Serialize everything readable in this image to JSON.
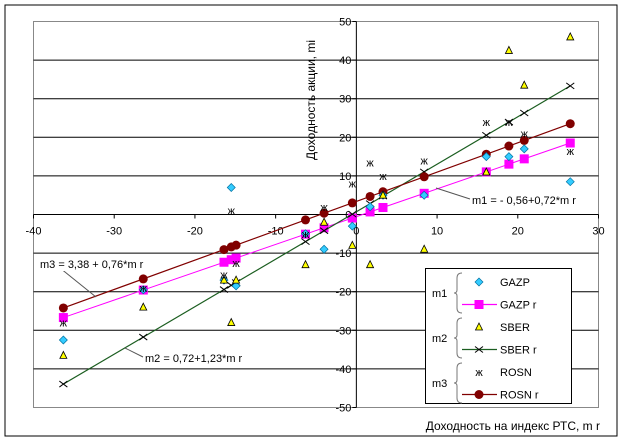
{
  "chart_data": {
    "type": "scatter",
    "xlabel": "Доходность на индекс РТС, m r",
    "ylabel": "Доходность акции, mi",
    "xlim": [
      -40,
      30
    ],
    "ylim": [
      -50,
      50
    ],
    "xticks": [
      "-40",
      "-30",
      "-20",
      "-10",
      "0",
      "10",
      "20",
      "30"
    ],
    "yticks": [
      "-50",
      "-40",
      "-30",
      "-20",
      "-10",
      "0",
      "10",
      "20",
      "30",
      "40",
      "50"
    ],
    "grid": "horizontal",
    "legend_position": "bottom-right",
    "x": [
      -36.3,
      -26.4,
      -16.4,
      -15.5,
      -14.9,
      -6.3,
      -4.0,
      -0.5,
      1.7,
      3.3,
      8.4,
      16.1,
      18.9,
      20.8,
      26.5
    ],
    "series": [
      {
        "name": "GAZP",
        "kind": "points",
        "color": "#33CCFF",
        "values": [
          -32.5,
          -19.5,
          -17,
          7,
          -18.5,
          -5,
          -9,
          -3,
          2,
          5,
          5,
          15,
          15,
          17,
          8.5
        ]
      },
      {
        "name": "GAZP r",
        "kind": "line",
        "color": "#FF00FF",
        "intercept": -0.56,
        "slope": 0.72
      },
      {
        "name": "SBER",
        "kind": "points",
        "color": "#FFFF00",
        "values": [
          -36.5,
          -24,
          -17,
          -28,
          -17,
          -13,
          -2,
          -8,
          -13,
          5,
          -9,
          11,
          42.5,
          33.5,
          46
        ]
      },
      {
        "name": "SBER r",
        "kind": "line",
        "color": "#1B5E20",
        "intercept": 0.72,
        "slope": 1.23
      },
      {
        "name": "ROSN",
        "kind": "points",
        "color": "#000000",
        "values": [
          -28,
          -19,
          -15.5,
          1,
          -12.5,
          -5,
          2,
          8,
          13.5,
          10,
          14,
          24,
          24,
          21,
          16.5
        ]
      },
      {
        "name": "ROSN r",
        "kind": "line",
        "color": "#800000",
        "intercept": 3.38,
        "slope": 0.76
      }
    ],
    "legend_groups": [
      "m1",
      "m2",
      "m3"
    ],
    "annotations": {
      "eq1": "m1 = - 0,56+0,72*m r",
      "eq2": "m2 = 0,72+1,23*m r",
      "eq3": "m3 = 3,38 + 0,76*m r"
    }
  }
}
